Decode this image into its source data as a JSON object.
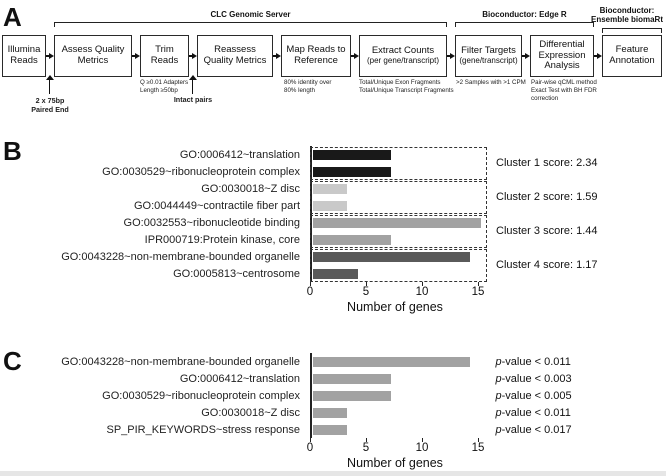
{
  "panel_a": {
    "label": "A",
    "server_groups": [
      {
        "name": "CLC Genomic Server"
      },
      {
        "name": "Bioconductor: Edge R"
      },
      {
        "name": "Bioconductor:\nEnsemble biomaRt"
      }
    ],
    "steps": [
      {
        "title": "Illumina\nReads"
      },
      {
        "title": "Assess Quality\nMetrics"
      },
      {
        "title": "Trim\nReads"
      },
      {
        "title": "Reassess\nQuality Metrics"
      },
      {
        "title": "Map Reads to\nReference"
      },
      {
        "title": "Extract Counts",
        "subtitle": "(per gene/transcript)"
      },
      {
        "title": "Filter Targets",
        "subtitle": "(gene/transcript)"
      },
      {
        "title": "Differential\nExpression\nAnalysis"
      },
      {
        "title": "Feature\nAnnotation"
      }
    ],
    "annotations": [
      {
        "text": "2 x 75bp\nPaired End"
      },
      {
        "text": "Q ≥0.01 Adapters\nLength ≥50bp"
      },
      {
        "text": "Intact pairs"
      },
      {
        "text": "80% identity over\n80% length"
      },
      {
        "text": "Total/Unique Exon Fragments\nTotal/Unique Transcript Fragments"
      },
      {
        "text": ">2 Samples with >1 CPM"
      },
      {
        "text": "Pair-wise qCML method\nExact Test with BH FDR\ncorrection"
      }
    ]
  },
  "chart_data": [
    {
      "type": "bar",
      "panel": "B",
      "orientation": "horizontal",
      "xlabel": "Number of genes",
      "xticks": [
        0,
        5,
        10,
        15
      ],
      "xlim": [
        0,
        15.8
      ],
      "grid": false,
      "categories": [
        "GO:0006412~translation",
        "GO:0030529~ribonucleoprotein complex",
        "GO:0030018~Z disc",
        "GO:0044449~contractile fiber part",
        "GO:0032553~ribonucleotide binding",
        "IPR000719:Protein kinase, core",
        "GO:0043228~non-membrane-bounded organelle",
        "GO:0005813~centrosome"
      ],
      "values": [
        7,
        7,
        3,
        3,
        15,
        7,
        14,
        4
      ],
      "clusters": [
        {
          "label": "Cluster 1 score: 2.34",
          "bar_color": "#191919",
          "terms": [
            "GO:0006412~translation",
            "GO:0030529~ribonucleoprotein complex"
          ],
          "values": [
            7,
            7
          ]
        },
        {
          "label": "Cluster 2 score: 1.59",
          "bar_color": "#c9c9c9",
          "terms": [
            "GO:0030018~Z disc",
            "GO:0044449~contractile fiber part"
          ],
          "values": [
            3,
            3
          ]
        },
        {
          "label": "Cluster 3 score: 1.44",
          "bar_color": "#a2a2a2",
          "terms": [
            "GO:0032553~ribonucleotide binding",
            "IPR000719:Protein kinase, core"
          ],
          "values": [
            15,
            7
          ]
        },
        {
          "label": "Cluster 4 score: 1.17",
          "bar_color": "#5a5a5a",
          "terms": [
            "GO:0043228~non-membrane-bounded organelle",
            "GO:0005813~centrosome"
          ],
          "values": [
            14,
            4
          ]
        }
      ]
    },
    {
      "type": "bar",
      "panel": "C",
      "orientation": "horizontal",
      "xlabel": "Number of genes",
      "xticks": [
        0,
        5,
        10,
        15
      ],
      "xlim": [
        0,
        15.8
      ],
      "grid": false,
      "bar_color": "#a2a2a2",
      "categories": [
        "GO:0043228~non-membrane-bounded organelle",
        "GO:0006412~translation",
        "GO:0030529~ribonucleoprotein complex",
        "GO:0030018~Z disc",
        "SP_PIR_KEYWORDS~stress response"
      ],
      "values": [
        14,
        7,
        7,
        3,
        3
      ],
      "annotations": [
        "p-value < 0.011",
        "p-value < 0.003",
        "p-value < 0.005",
        "p-value < 0.011",
        "p-value < 0.017"
      ]
    }
  ]
}
